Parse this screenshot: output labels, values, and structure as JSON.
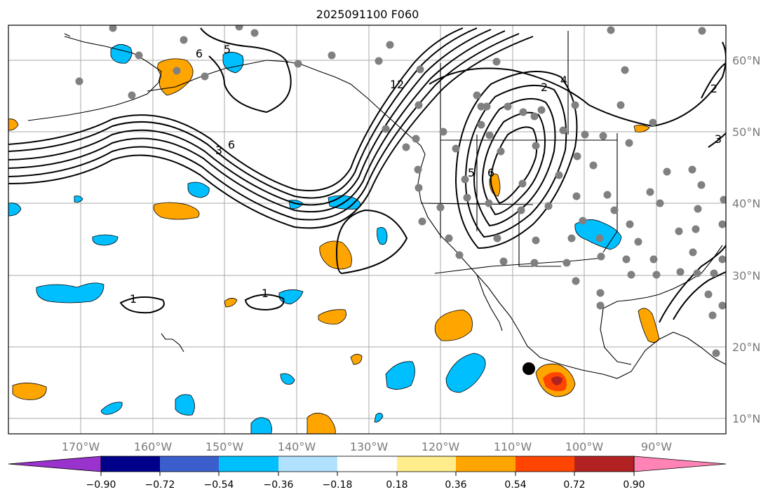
{
  "title": "2025091100 F060",
  "lon_labels": [
    "170°W",
    "160°W",
    "150°W",
    "140°W",
    "130°W",
    "120°W",
    "110°W",
    "100°W",
    "90°W"
  ],
  "lat_labels": [
    "60°N",
    "50°N",
    "40°N",
    "30°N",
    "20°N",
    "10°N"
  ],
  "colorbar": {
    "tick_labels": [
      "−0.90",
      "−0.72",
      "−0.54",
      "−0.36",
      "−0.18",
      "0.18",
      "0.36",
      "0.54",
      "0.72",
      "0.90"
    ],
    "colors": [
      "#9a32cd",
      "#00008b",
      "#3a5fcd",
      "#00bfff",
      "#b0e2ff",
      "#ffffff",
      "#ffec8b",
      "#ffa500",
      "#ff4500",
      "#b22222",
      "#ff83b4"
    ]
  },
  "contour_labels": [
    "6",
    "5",
    "3",
    "6",
    "12",
    "2",
    "4",
    "5",
    "6",
    "1",
    "1",
    "2",
    "3"
  ],
  "colors": {
    "positive_mid": "#ffa500",
    "positive_high": "#ff4500",
    "positive_peak": "#b22222",
    "negative_mid": "#00bfff",
    "negative_light": "#b0e2ff",
    "station": "#808080",
    "marker": "#000000"
  }
}
